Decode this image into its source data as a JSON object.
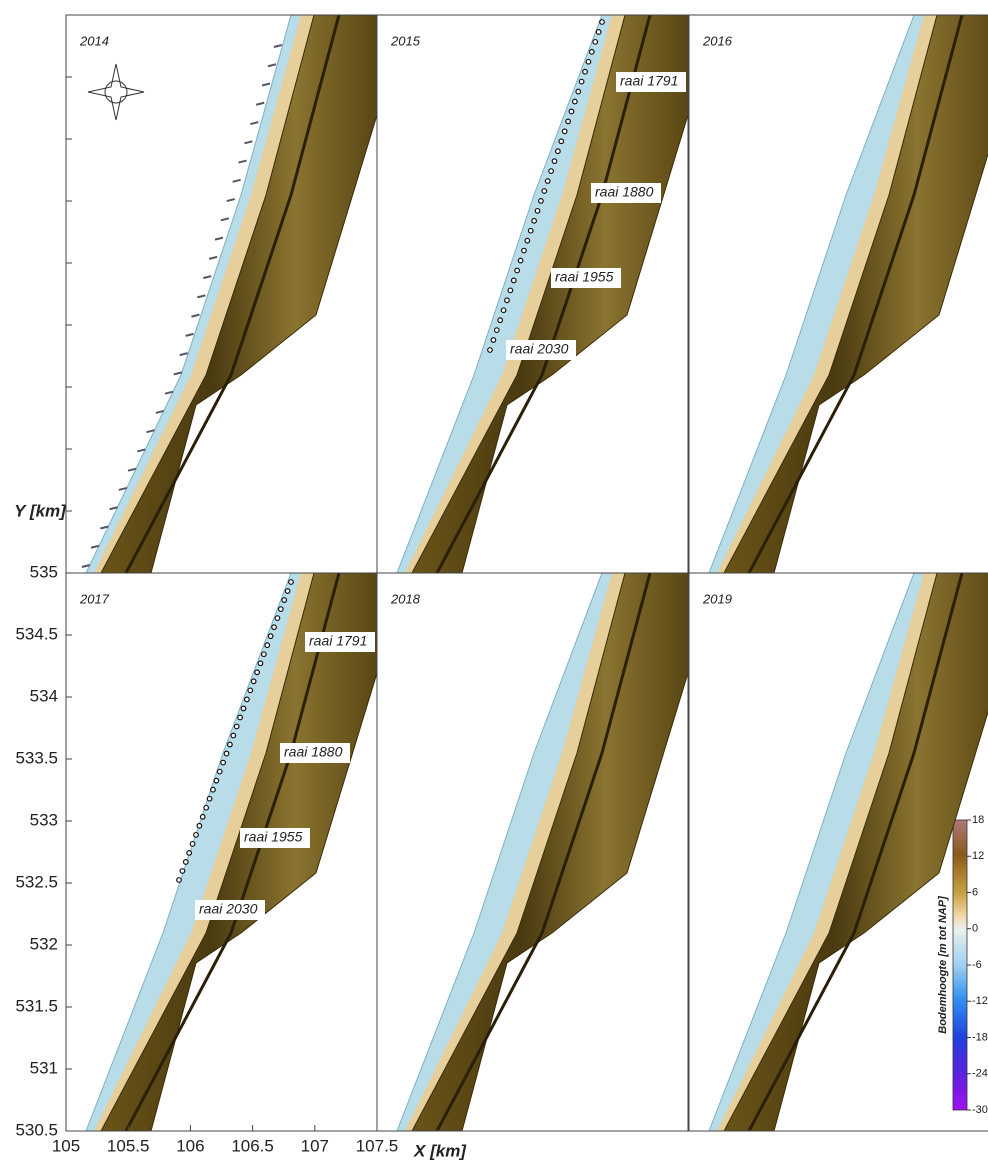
{
  "panels": [
    {
      "year": "2014"
    },
    {
      "year": "2015",
      "labels": [
        "raai 1791",
        "raai 1880",
        "raai 1955",
        "raai 2030"
      ]
    },
    {
      "year": "2016"
    },
    {
      "year": "2017",
      "labels": [
        "raai 1791",
        "raai 1880",
        "raai 1955",
        "raai 2030"
      ]
    },
    {
      "year": "2018"
    },
    {
      "year": "2019"
    }
  ],
  "axes": {
    "xlabel": "X [km]",
    "ylabel": "Y [km]",
    "xlim": [
      105,
      107.5
    ],
    "ylim": [
      530.5,
      535
    ],
    "xticks": [
      105,
      105.5,
      106,
      106.5,
      107,
      107.5
    ],
    "yticks": [
      530.5,
      531,
      531.5,
      532,
      532.5,
      533,
      533.5,
      534,
      534.5,
      535
    ]
  },
  "colorbar": {
    "label": "Bodemhoogte  [m tot NAP]",
    "lim": [
      -30,
      18
    ],
    "ticks": [
      18,
      12,
      6,
      0,
      -6,
      -12,
      -18,
      -24,
      -30
    ]
  }
}
